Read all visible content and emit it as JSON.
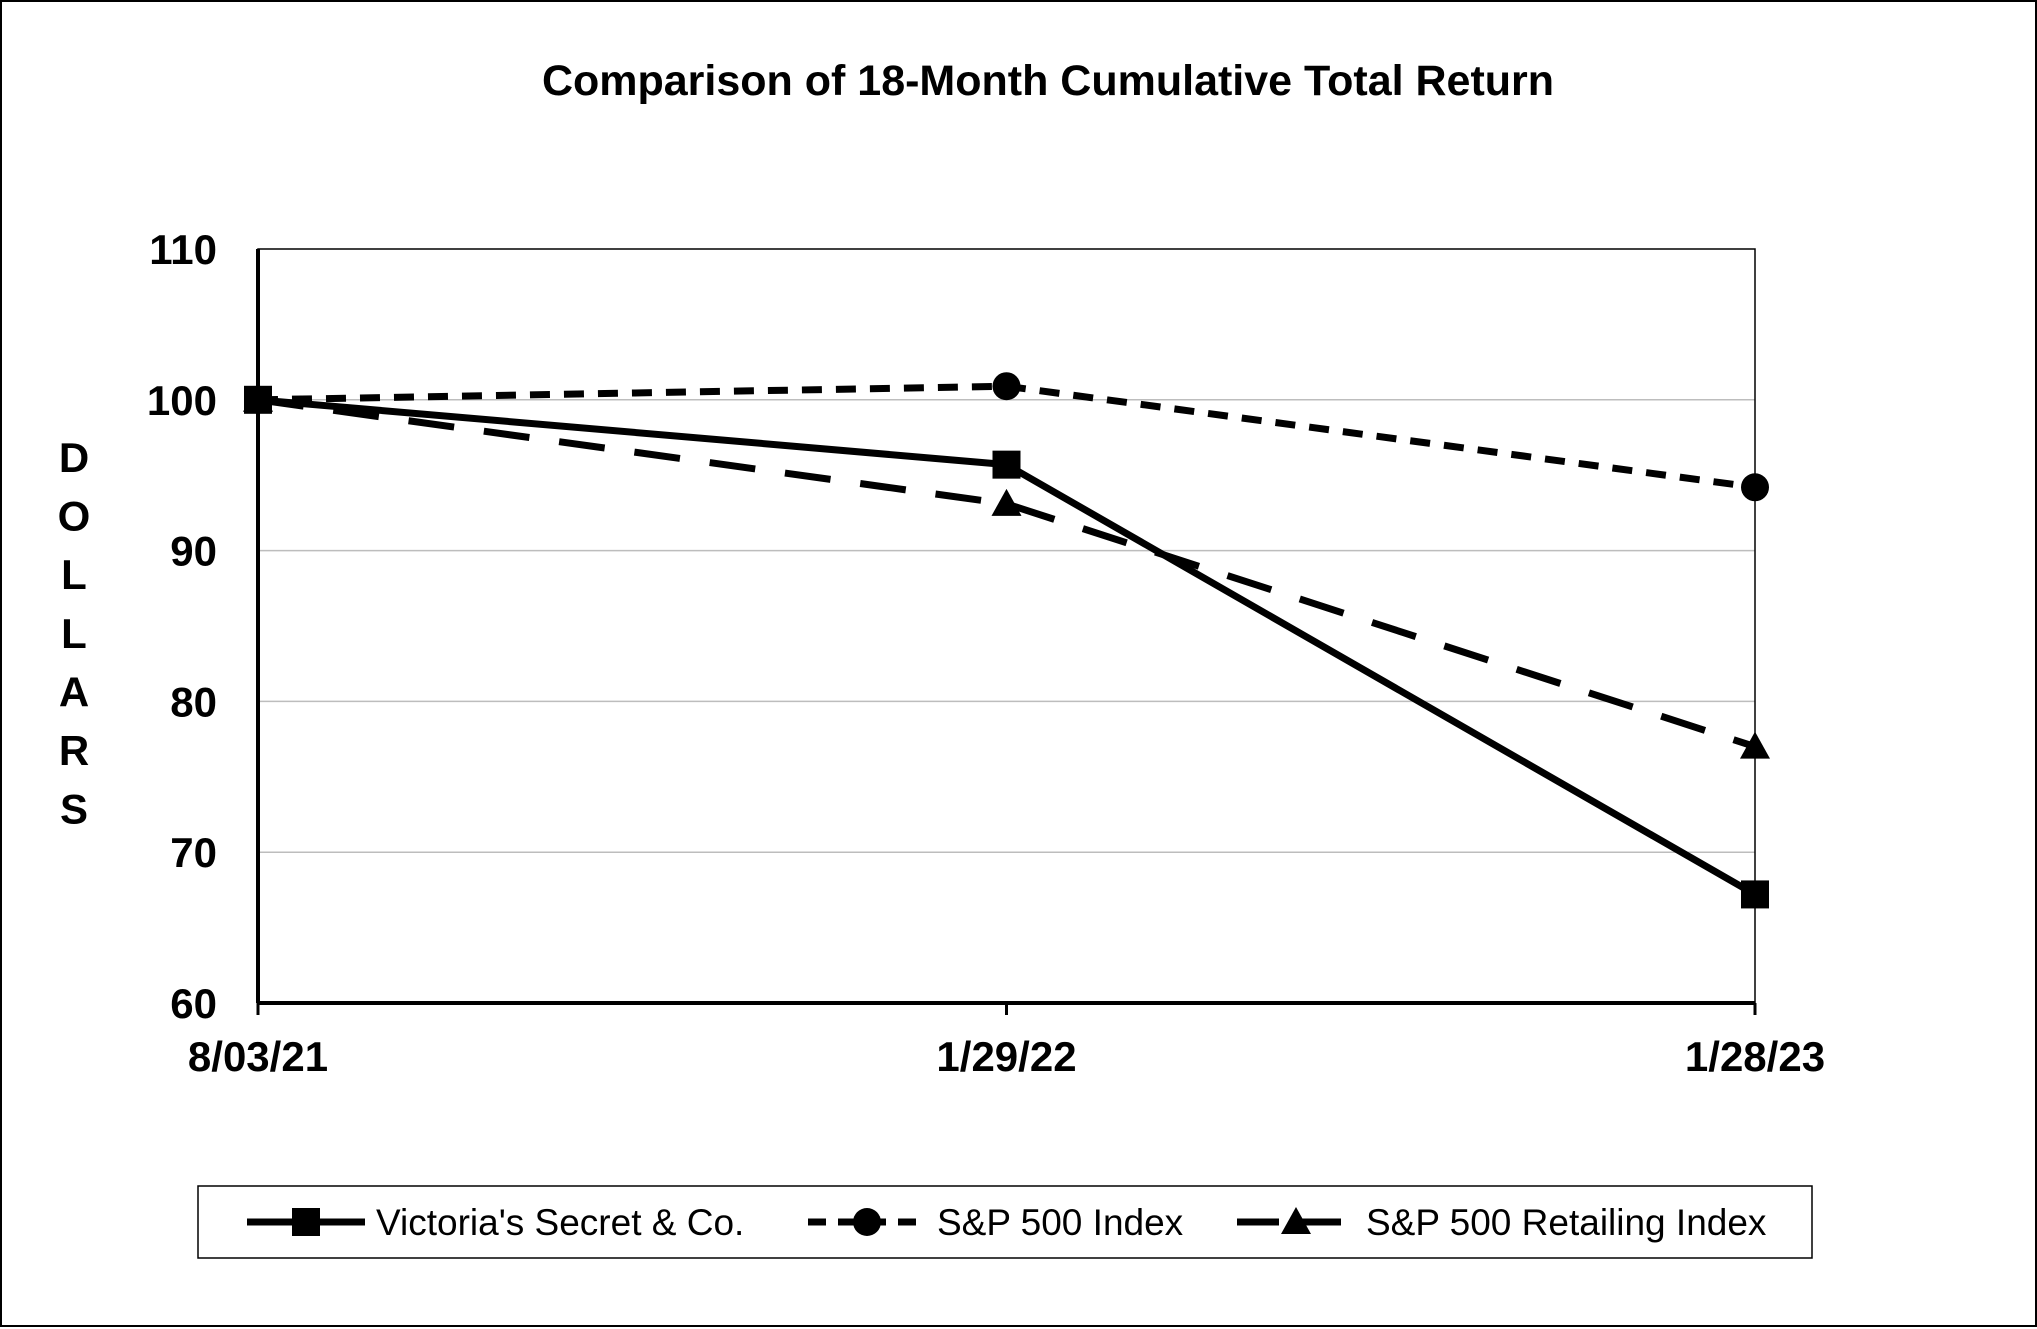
{
  "chart_data": {
    "type": "line",
    "title": "Comparison of 18-Month Cumulative Total Return",
    "ylabel": "DOLLARS",
    "xlabel": "",
    "categories": [
      "8/03/21",
      "1/29/22",
      "1/28/23"
    ],
    "ylim": [
      60,
      110
    ],
    "yticks": [
      60,
      70,
      80,
      90,
      100,
      110
    ],
    "grid": true,
    "legend_position": "bottom",
    "series": [
      {
        "name": "Victoria's Secret & Co.",
        "values": [
          100,
          95.7,
          67.2
        ],
        "line_style": "solid",
        "marker": "square",
        "color": "#000000"
      },
      {
        "name": "S&P 500 Index",
        "values": [
          100,
          100.9,
          94.2
        ],
        "line_style": "dotted",
        "marker": "circle",
        "color": "#000000"
      },
      {
        "name": "S&P 500 Retailing Index",
        "values": [
          100,
          93.1,
          77.0
        ],
        "line_style": "dashed",
        "marker": "triangle",
        "color": "#000000"
      }
    ]
  }
}
